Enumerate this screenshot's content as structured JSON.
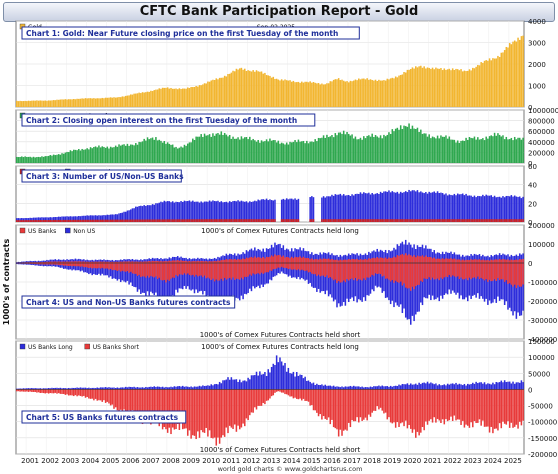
{
  "page": {
    "title": "CFTC Bank Participation Report - Gold",
    "date_label": "Sep-02  2025",
    "y_axis_title": "1000's of contracts",
    "footer": "world gold charts © www.goldchartsrus.com"
  },
  "chart_data": [
    {
      "type": "bar",
      "title": "Chart 1: Gold: Near Future closing price on the first Tuesday of the month",
      "series": [
        {
          "name": "Gold",
          "color": "#f2b631"
        }
      ],
      "ylim": [
        0,
        4000
      ],
      "yticks": [
        0,
        1000,
        2000,
        3000,
        4000
      ],
      "anchors": [
        [
          2000.5,
          280
        ],
        [
          2002.0,
          300
        ],
        [
          2003.5,
          380
        ],
        [
          2005.5,
          440
        ],
        [
          2006.5,
          620
        ],
        [
          2008.0,
          900
        ],
        [
          2008.9,
          830
        ],
        [
          2010.0,
          1120
        ],
        [
          2011.0,
          1500
        ],
        [
          2011.7,
          1800
        ],
        [
          2012.5,
          1650
        ],
        [
          2013.3,
          1400
        ],
        [
          2013.6,
          1250
        ],
        [
          2015.9,
          1080
        ],
        [
          2016.5,
          1300
        ],
        [
          2017.0,
          1200
        ],
        [
          2018.0,
          1320
        ],
        [
          2018.8,
          1200
        ],
        [
          2019.6,
          1500
        ],
        [
          2020.6,
          1950
        ],
        [
          2021.2,
          1750
        ],
        [
          2022.0,
          1800
        ],
        [
          2022.8,
          1650
        ],
        [
          2023.5,
          1950
        ],
        [
          2024.5,
          2400
        ],
        [
          2025.0,
          2800
        ],
        [
          2025.7,
          3400
        ]
      ]
    },
    {
      "type": "bar",
      "title": "Chart 2: Closing open interest on the first Tuesday of the month",
      "series": [
        {
          "name": "Open Interest - Number of Contracts",
          "color": "#2fa84f"
        }
      ],
      "ylim": [
        0,
        1000000
      ],
      "yticks": [
        0,
        200000,
        400000,
        600000,
        800000,
        1000000
      ],
      "anchors": [
        [
          2000.5,
          110000
        ],
        [
          2002.0,
          120000
        ],
        [
          2004.0,
          280000
        ],
        [
          2006.0,
          330000
        ],
        [
          2007.5,
          480000
        ],
        [
          2008.5,
          270000
        ],
        [
          2010.0,
          560000
        ],
        [
          2011.0,
          520000
        ],
        [
          2012.0,
          450000
        ],
        [
          2013.0,
          420000
        ],
        [
          2014.0,
          380000
        ],
        [
          2015.5,
          430000
        ],
        [
          2016.5,
          580000
        ],
        [
          2017.5,
          480000
        ],
        [
          2018.5,
          500000
        ],
        [
          2019.5,
          620000
        ],
        [
          2020.0,
          760000
        ],
        [
          2020.7,
          540000
        ],
        [
          2021.5,
          500000
        ],
        [
          2022.5,
          420000
        ],
        [
          2023.5,
          470000
        ],
        [
          2024.5,
          520000
        ],
        [
          2025.7,
          430000
        ]
      ]
    },
    {
      "type": "bar",
      "title": "Chart 3: Number of US/Non-US Banks",
      "series": [
        {
          "name": "US Banks",
          "color": "#cc2222"
        },
        {
          "name": "Non US Banks",
          "color": "#2d2ddb"
        }
      ],
      "ylim": [
        0,
        60
      ],
      "yticks": [
        0,
        20,
        40,
        60
      ],
      "gaps": [
        [
          2013.4,
          2013.7
        ],
        [
          2014.6,
          2015.1
        ],
        [
          2015.3,
          2015.7
        ]
      ],
      "anchors": [
        [
          2000.5,
          4
        ],
        [
          2002.0,
          5
        ],
        [
          2005.5,
          8
        ],
        [
          2006.5,
          16
        ],
        [
          2008.0,
          22
        ],
        [
          2012.0,
          22
        ],
        [
          2013.0,
          24
        ],
        [
          2014.0,
          24
        ],
        [
          2016.0,
          28
        ],
        [
          2017.5,
          30
        ],
        [
          2019.0,
          32
        ],
        [
          2020.5,
          33
        ],
        [
          2022.0,
          30
        ],
        [
          2023.5,
          28
        ],
        [
          2025.7,
          27
        ]
      ],
      "us_anchors": [
        [
          2000.5,
          2
        ],
        [
          2010.0,
          3
        ],
        [
          2016.0,
          3
        ],
        [
          2025.7,
          3
        ]
      ]
    },
    {
      "type": "bar",
      "title": "Chart 4: US and Non-US Banks futures contracts",
      "series": [
        {
          "name": "US Banks",
          "color": "#e83a3a"
        },
        {
          "name": "Non US",
          "color": "#2d2ddb"
        }
      ],
      "ylim": [
        -400000,
        200000
      ],
      "yticks": [
        -400000,
        -300000,
        -200000,
        -100000,
        0,
        100000,
        200000
      ],
      "top_label": "1000's of Comex Futures Contracts held long",
      "bottom_label": "1000's of Comex Futures Contracts held short",
      "long_anchors": [
        [
          2000.5,
          5000
        ],
        [
          2003.0,
          20000
        ],
        [
          2005.0,
          15000
        ],
        [
          2007.0,
          20000
        ],
        [
          2008.5,
          30000
        ],
        [
          2010.0,
          20000
        ],
        [
          2011.5,
          50000
        ],
        [
          2012.5,
          70000
        ],
        [
          2013.5,
          90000
        ],
        [
          2014.5,
          70000
        ],
        [
          2015.5,
          50000
        ],
        [
          2017.0,
          40000
        ],
        [
          2018.5,
          60000
        ],
        [
          2019.3,
          75000
        ],
        [
          2020.0,
          110000
        ],
        [
          2021.0,
          70000
        ],
        [
          2022.0,
          50000
        ],
        [
          2023.0,
          40000
        ],
        [
          2024.0,
          40000
        ],
        [
          2025.7,
          45000
        ]
      ],
      "short_anchors": [
        [
          2000.5,
          -5000
        ],
        [
          2002.5,
          -20000
        ],
        [
          2004.0,
          -50000
        ],
        [
          2005.5,
          -80000
        ],
        [
          2007.0,
          -160000
        ],
        [
          2008.0,
          -200000
        ],
        [
          2009.0,
          -120000
        ],
        [
          2010.0,
          -180000
        ],
        [
          2011.0,
          -200000
        ],
        [
          2012.0,
          -160000
        ],
        [
          2013.0,
          -100000
        ],
        [
          2013.7,
          -50000
        ],
        [
          2015.0,
          -100000
        ],
        [
          2016.5,
          -210000
        ],
        [
          2017.5,
          -200000
        ],
        [
          2018.5,
          -130000
        ],
        [
          2019.5,
          -230000
        ],
        [
          2020.0,
          -310000
        ],
        [
          2020.8,
          -200000
        ],
        [
          2022.0,
          -160000
        ],
        [
          2023.0,
          -180000
        ],
        [
          2024.5,
          -200000
        ],
        [
          2025.7,
          -280000
        ]
      ],
      "us_share": 0.42
    },
    {
      "type": "bar",
      "title": "Chart 5: US Banks futures contracts",
      "series": [
        {
          "name": "US Banks Long",
          "color": "#2d2ddb"
        },
        {
          "name": "US Banks Short",
          "color": "#e83a3a"
        }
      ],
      "ylim": [
        -200000,
        150000
      ],
      "yticks": [
        -200000,
        -150000,
        -100000,
        -50000,
        0,
        50000,
        100000,
        150000
      ],
      "top_label": "1000's of Comex Futures Contracts held long",
      "bottom_label": "1000's of Comex Futures Contracts held short",
      "long_anchors": [
        [
          2000.5,
          3000
        ],
        [
          2004.0,
          5000
        ],
        [
          2008.0,
          8000
        ],
        [
          2010.0,
          10000
        ],
        [
          2011.0,
          30000
        ],
        [
          2012.0,
          30000
        ],
        [
          2013.0,
          60000
        ],
        [
          2013.5,
          85000
        ],
        [
          2014.2,
          60000
        ],
        [
          2015.0,
          25000
        ],
        [
          2016.0,
          10000
        ],
        [
          2018.0,
          8000
        ],
        [
          2019.5,
          12000
        ],
        [
          2020.5,
          20000
        ],
        [
          2022.0,
          15000
        ],
        [
          2024.0,
          20000
        ],
        [
          2025.7,
          25000
        ]
      ],
      "short_anchors": [
        [
          2000.5,
          -5000
        ],
        [
          2003.0,
          -15000
        ],
        [
          2004.5,
          -30000
        ],
        [
          2006.0,
          -70000
        ],
        [
          2007.5,
          -110000
        ],
        [
          2009.0,
          -130000
        ],
        [
          2010.5,
          -150000
        ],
        [
          2011.5,
          -120000
        ],
        [
          2012.5,
          -60000
        ],
        [
          2013.5,
          -5000
        ],
        [
          2015.0,
          -40000
        ],
        [
          2016.5,
          -130000
        ],
        [
          2017.5,
          -100000
        ],
        [
          2018.5,
          -60000
        ],
        [
          2019.5,
          -110000
        ],
        [
          2020.5,
          -130000
        ],
        [
          2021.5,
          -90000
        ],
        [
          2022.5,
          -100000
        ],
        [
          2023.5,
          -110000
        ],
        [
          2024.5,
          -120000
        ],
        [
          2025.7,
          -100000
        ]
      ]
    }
  ],
  "x_axis": {
    "start": 2000.5,
    "end": 2025.75,
    "ticks": [
      "2001",
      "2002",
      "2003",
      "2004",
      "2005",
      "2006",
      "2007",
      "2008",
      "2009",
      "2010",
      "2011",
      "2012",
      "2013",
      "2014",
      "2015",
      "2016",
      "2017",
      "2018",
      "2019",
      "2020",
      "2021",
      "2022",
      "2023",
      "2024",
      "2025"
    ]
  }
}
